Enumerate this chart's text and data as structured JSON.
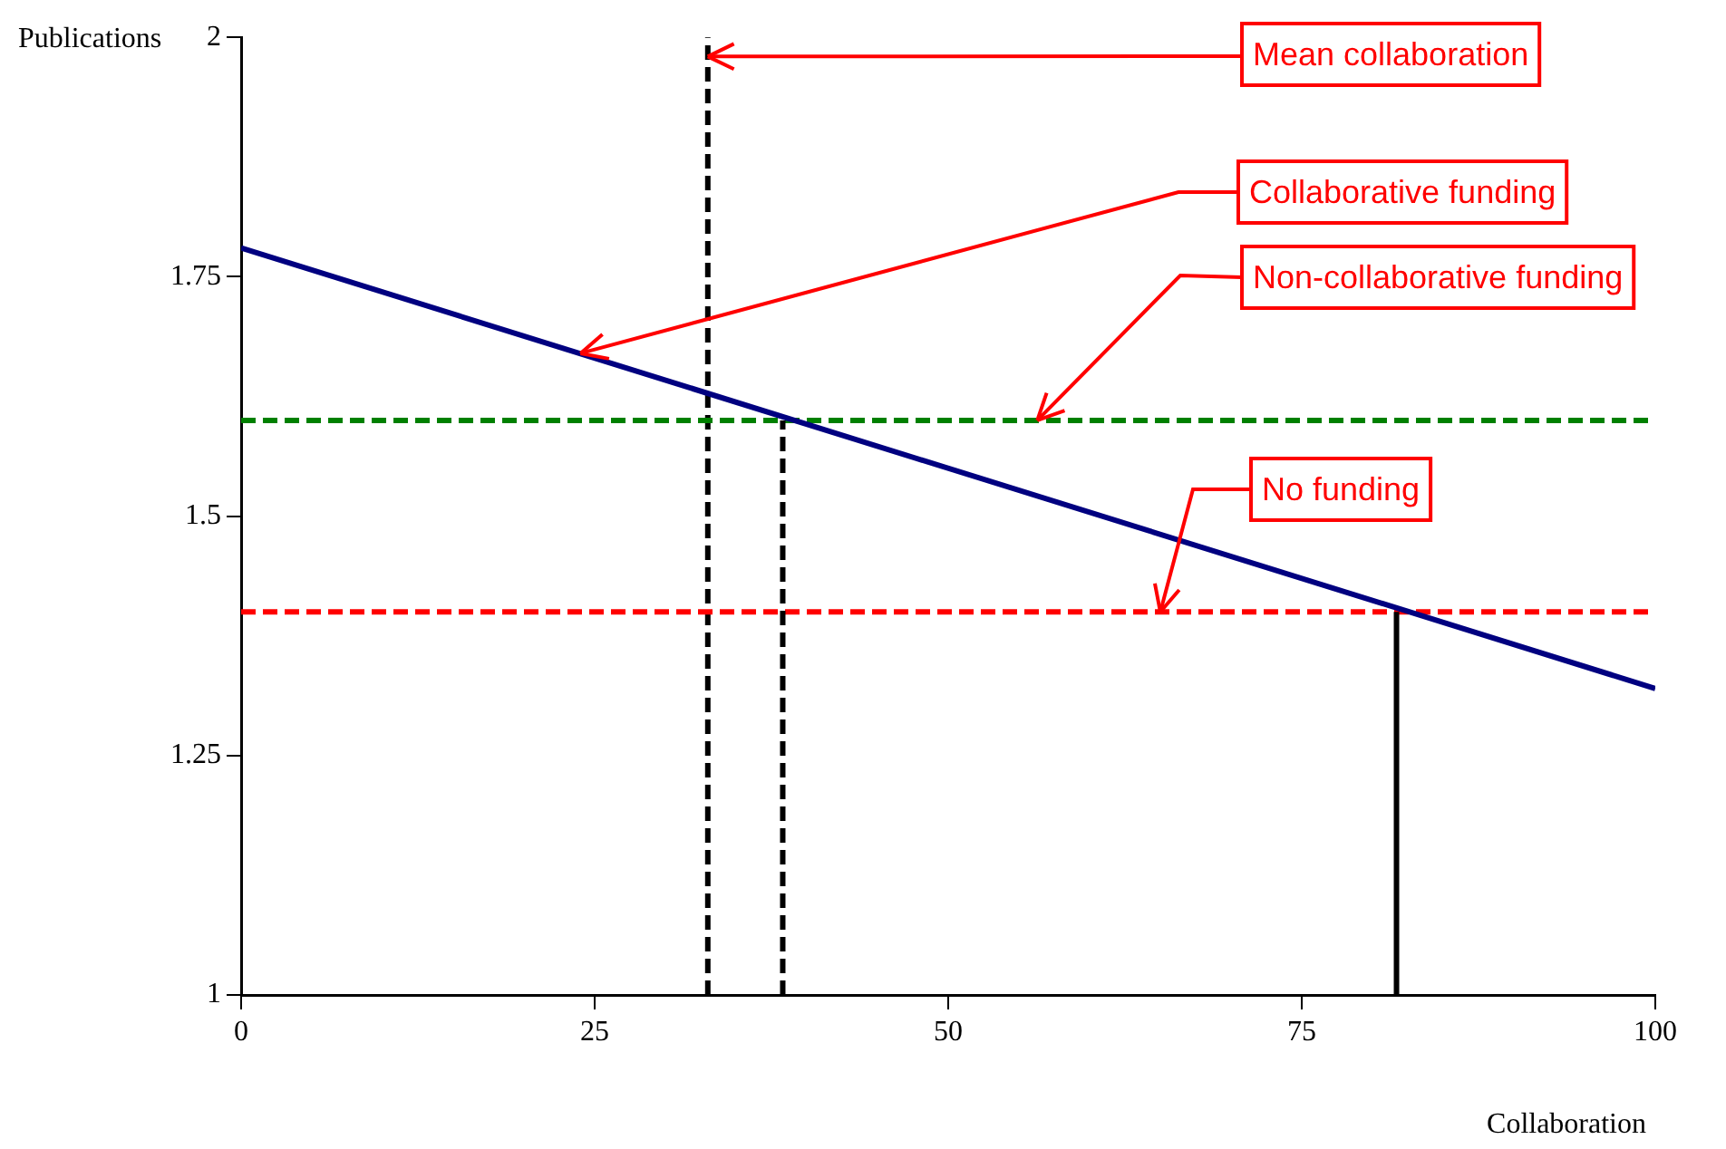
{
  "chart_data": {
    "type": "line",
    "xlabel": "Collaboration",
    "ylabel": "Publications",
    "xlim": [
      0,
      100
    ],
    "ylim": [
      1,
      2
    ],
    "xticks": [
      0,
      25,
      50,
      75,
      100
    ],
    "yticks": [
      1,
      1.25,
      1.5,
      1.75,
      2
    ],
    "grid": false,
    "legend": false,
    "marker": "none",
    "series": [
      {
        "x": [
          0,
          100
        ],
        "values": [
          1.78,
          1.32
        ],
        "color": "#000080",
        "line_style": "solid"
      },
      {
        "x": [
          38.3,
          38.3
        ],
        "values": [
          1,
          1.6
        ],
        "color": "#000000",
        "line_style": "dashed"
      },
      {
        "x": [
          81.7,
          81.7
        ],
        "values": [
          1,
          1.4
        ],
        "color": "#000000",
        "line_style": "solid"
      }
    ],
    "ref_lines": [
      {
        "axis": "x",
        "value": 33,
        "color": "#000000",
        "line_style": "dashed"
      },
      {
        "axis": "y",
        "value": 1.6,
        "color": "#008000",
        "line_style": "dashed"
      },
      {
        "axis": "y",
        "value": 1.4,
        "color": "#ff0000",
        "line_style": "dashed"
      }
    ],
    "annotations": [
      {
        "text": "Mean collaboration",
        "x": 33,
        "y": 1.98
      },
      {
        "text": "Collaborative funding",
        "x": 24,
        "y": 1.67
      },
      {
        "text": "Non-collaborative funding",
        "x": 56.3,
        "y": 1.6
      },
      {
        "text": "No funding",
        "x": 65,
        "y": 1.4
      }
    ]
  }
}
